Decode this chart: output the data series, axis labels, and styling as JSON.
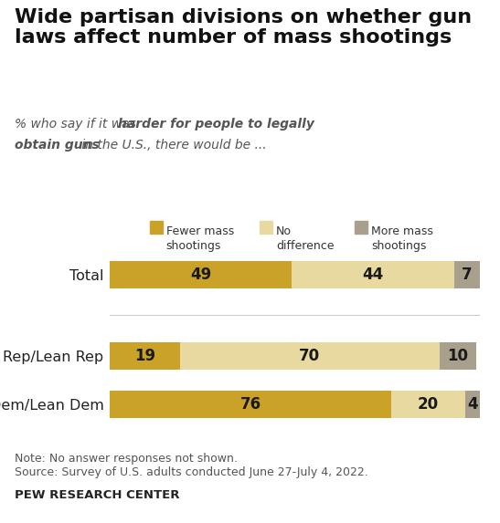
{
  "title": "Wide partisan divisions on whether gun\nlaws affect number of mass shootings",
  "categories": [
    "Total",
    "Rep/Lean Rep",
    "Dem/Lean Dem"
  ],
  "values": [
    [
      49,
      44,
      7
    ],
    [
      19,
      70,
      10
    ],
    [
      76,
      20,
      4
    ]
  ],
  "colors": [
    "#C9A227",
    "#E8D9A0",
    "#A89F8C"
  ],
  "legend_labels": [
    "Fewer mass\nshootings",
    "No\ndifference",
    "More mass\nshootings"
  ],
  "note_line1": "Note: No answer responses not shown.",
  "note_line2": "Source: Survey of U.S. adults conducted June 27-July 4, 2022.",
  "source_label": "PEW RESEARCH CENTER",
  "background_color": "#FFFFFF",
  "title_fontsize": 16,
  "label_fontsize": 11.5,
  "bar_label_fontsize": 12,
  "legend_fontsize": 9,
  "note_fontsize": 9
}
